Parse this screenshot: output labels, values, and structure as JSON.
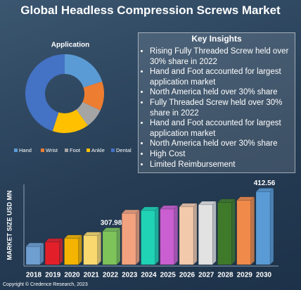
{
  "title": "Global Headless Compression Screws Market",
  "chart_data": [
    {
      "type": "donut",
      "title": "Application",
      "categories": [
        "Hand",
        "Wrist",
        "Foot",
        "Ankle",
        "Dental"
      ],
      "values": [
        20,
        12,
        8,
        15,
        45
      ],
      "colors": [
        "#5b9bd5",
        "#ed7d31",
        "#a5a5a5",
        "#ffc000",
        "#4472c4"
      ]
    },
    {
      "type": "bar3d",
      "y_label": "MARKET SIZE USD MN",
      "categories": [
        "2018",
        "2019",
        "2020",
        "2021",
        "2022",
        "2023",
        "2024",
        "2025",
        "2026",
        "2027",
        "2028",
        "2029",
        "2030"
      ],
      "values": [
        268,
        279.6,
        289,
        296.6,
        307.98,
        355.5,
        363,
        366.8,
        372.5,
        378,
        383.9,
        389.6,
        412.56
      ],
      "value_labels": [
        null,
        null,
        null,
        null,
        "307.98",
        null,
        null,
        null,
        null,
        null,
        null,
        null,
        "412.56"
      ],
      "colors": [
        "#6f9fd0",
        "#e3202a",
        "#f5b400",
        "#f9d96f",
        "#7dc35a",
        "#f2a27e",
        "#1fd3b4",
        "#c95fd0",
        "#f3c9ac",
        "#e2e2e2",
        "#3f7a2b",
        "#ef8a4a",
        "#5a9bd5"
      ],
      "ylim": [
        220,
        430
      ]
    }
  ],
  "key_insights": {
    "title": "Key Insights",
    "items": [
      "Rising Fully Threaded Screw held over 30% share in 2022",
      "Hand and Foot accounted for largest application market",
      "North America held over 30% share",
      "Fully Threaded Screw held over 30% share in 2022",
      "Hand and Foot accounted for largest application market",
      "North America held over 30% share",
      "High Cost",
      "Limited Reimbursement"
    ]
  },
  "footer": "Copyright © Credence Research, 2023"
}
